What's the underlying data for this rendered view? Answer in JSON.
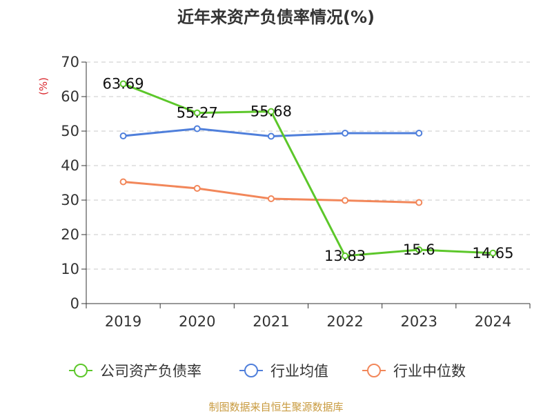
{
  "chart_data": {
    "type": "line",
    "title": "近年来资产负债率情况(%)",
    "unit_label": "(%)",
    "categories": [
      "2019",
      "2020",
      "2021",
      "2022",
      "2023",
      "2024"
    ],
    "ylim": [
      0,
      70
    ],
    "yticks": [
      "0",
      "10",
      "20",
      "30",
      "40",
      "50",
      "60",
      "70"
    ],
    "grid": true,
    "legend_position": "bottom",
    "series": [
      {
        "name": "公司资产负债率",
        "color": "#5cc72a",
        "values": [
          63.69,
          55.27,
          55.68,
          13.83,
          15.6,
          14.65
        ],
        "labels": [
          "63.69",
          "55.27",
          "55.68",
          "13.83",
          "15.6",
          "14.65"
        ]
      },
      {
        "name": "行业均值",
        "color": "#4f7fdb",
        "values": [
          48.6,
          50.7,
          48.5,
          49.4,
          49.4,
          null
        ]
      },
      {
        "name": "行业中位数",
        "color": "#f2875a",
        "values": [
          35.3,
          33.4,
          30.4,
          29.9,
          29.3,
          null
        ]
      }
    ],
    "source": "制图数据来自恒生聚源数据库"
  }
}
